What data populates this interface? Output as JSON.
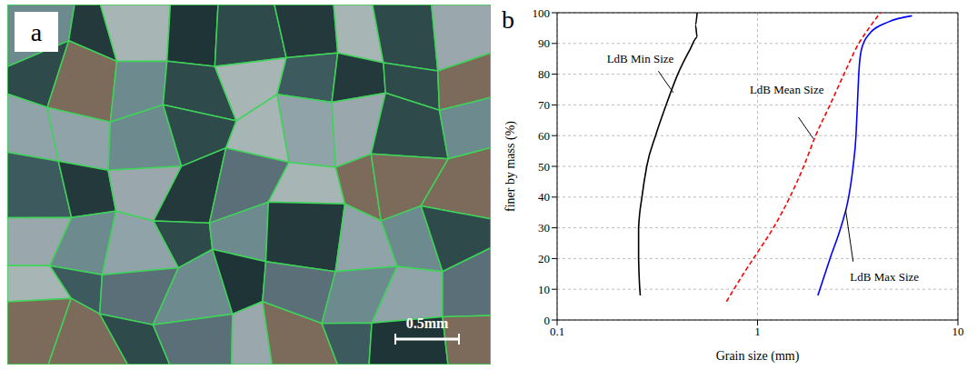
{
  "figure": {
    "panel_a": {
      "letter": "a",
      "scale_bar_label": "0.5mm"
    },
    "panel_b": {
      "letter": "b"
    }
  },
  "chart_data": {
    "type": "line",
    "x_label": "Grain size (mm)",
    "y_label": "finer by mass (%)",
    "log": "x",
    "grid": true,
    "xlim": [
      0.1,
      10
    ],
    "xticks": [
      0.1,
      1,
      10
    ],
    "ylim": [
      0,
      100
    ],
    "yticks": [
      0,
      10,
      20,
      30,
      40,
      50,
      60,
      70,
      80,
      90,
      100
    ],
    "series": [
      {
        "name": "LdB Min Size",
        "color": "#000000",
        "line_style": "solid",
        "x": [
          0.26,
          0.255,
          0.255,
          0.265,
          0.28,
          0.31,
          0.35,
          0.4,
          0.46,
          0.5,
          0.49,
          0.5
        ],
        "values": [
          8,
          20,
          30,
          40,
          50,
          60,
          70,
          80,
          88,
          92,
          96,
          100
        ]
      },
      {
        "name": "LdB Mean Size",
        "color": "#ff0000",
        "line_style": "dashed",
        "x": [
          0.7,
          0.85,
          1.0,
          1.2,
          1.45,
          1.7,
          1.95,
          2.3,
          2.7,
          3.2,
          3.6,
          4.1
        ],
        "values": [
          6,
          15,
          22,
          30,
          40,
          50,
          60,
          70,
          80,
          90,
          95,
          100
        ]
      },
      {
        "name": "LdB Max Size",
        "color": "#0000ff",
        "line_style": "solid",
        "x": [
          2.0,
          2.3,
          2.6,
          2.85,
          3.0,
          3.1,
          3.15,
          3.2,
          3.3,
          3.6,
          4.5,
          5.9
        ],
        "values": [
          8,
          20,
          30,
          40,
          50,
          60,
          70,
          80,
          88,
          93,
          97,
          99
        ]
      }
    ]
  }
}
